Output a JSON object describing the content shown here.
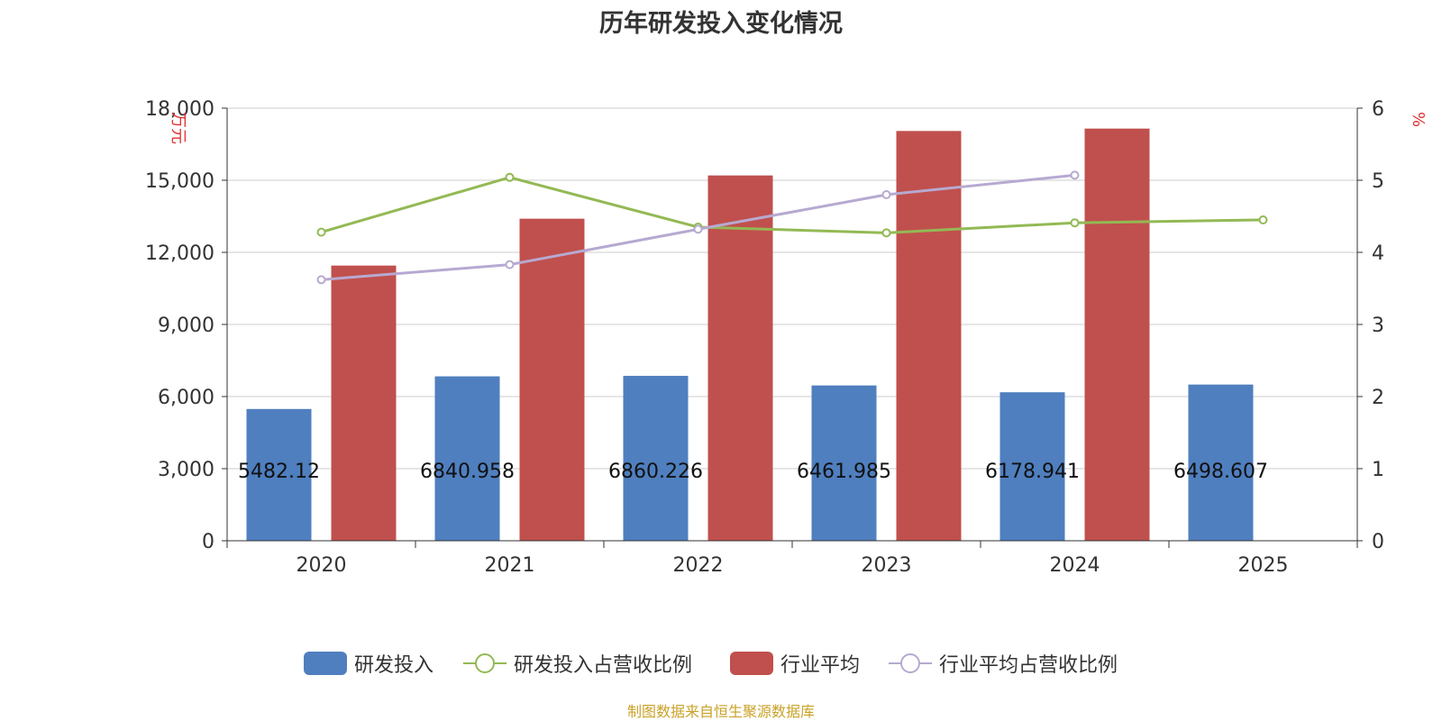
{
  "title": "历年研发投入变化情况",
  "source": "制图数据来自恒生聚源数据库",
  "chart_data": {
    "type": "bar",
    "categories": [
      "2020",
      "2021",
      "2022",
      "2023",
      "2024",
      "2025"
    ],
    "y_left": {
      "label": "万元",
      "min": 0,
      "max": 18000,
      "ticks": [
        "0",
        "3,000",
        "6,000",
        "9,000",
        "12,000",
        "15,000",
        "18,000"
      ],
      "tick_values": [
        0,
        3000,
        6000,
        9000,
        12000,
        15000,
        18000
      ]
    },
    "y_right": {
      "label": "%",
      "min": 0,
      "max": 6,
      "ticks": [
        "0",
        "1",
        "2",
        "3",
        "4",
        "5",
        "6"
      ],
      "tick_values": [
        0,
        1,
        2,
        3,
        4,
        5,
        6
      ]
    },
    "grid": true,
    "legend_position": "bottom",
    "series": [
      {
        "name": "研发投入",
        "type": "bar",
        "axis": "left",
        "color": "#4f7fbf",
        "values": [
          5482.12,
          6840.958,
          6860.226,
          6461.985,
          6178.941,
          6498.607
        ],
        "labels": [
          "5482.12",
          "6840.958",
          "6860.226",
          "6461.985",
          "6178.941",
          "6498.607"
        ]
      },
      {
        "name": "研发投入占营收比例",
        "type": "line",
        "axis": "right",
        "color": "#93b954",
        "values": [
          4.28,
          5.04,
          4.35,
          4.27,
          4.41,
          4.45
        ]
      },
      {
        "name": "行业平均",
        "type": "bar",
        "axis": "left",
        "color": "#c0504d",
        "values": [
          11450,
          13400,
          15200,
          17050,
          17150,
          null
        ]
      },
      {
        "name": "行业平均占营收比例",
        "type": "line",
        "axis": "right",
        "color": "#b7a9d1",
        "values": [
          3.62,
          3.83,
          4.32,
          4.8,
          5.07,
          null
        ]
      }
    ]
  }
}
